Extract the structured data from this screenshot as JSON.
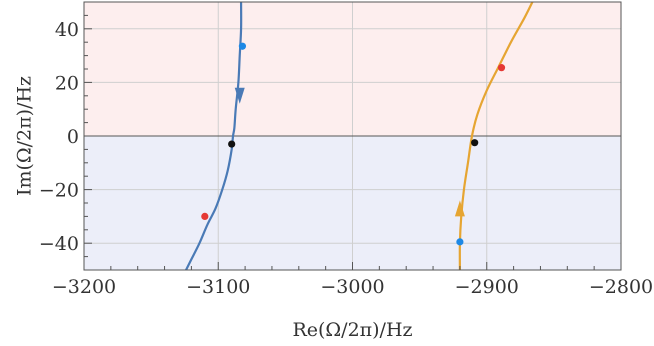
{
  "chart_data": {
    "type": "line",
    "xlabel": "Re(Ω/2π)/Hz",
    "ylabel": "Im(Ω/2π)/Hz",
    "xlim": [
      -3200,
      -2800
    ],
    "ylim": [
      -50,
      50
    ],
    "x_ticks": [
      -3200,
      -3100,
      -3000,
      -2900,
      -2800
    ],
    "y_ticks": [
      -40,
      -20,
      0,
      20,
      40
    ],
    "x_tick_labels": [
      "−3200",
      "−3100",
      "−3000",
      "−2900",
      "−2800"
    ],
    "y_tick_labels": [
      "−40",
      "−20",
      "0",
      "20",
      "40"
    ],
    "grid": true,
    "regions": [
      {
        "y_range": [
          0,
          50
        ],
        "color": "#fdeeee"
      },
      {
        "y_range": [
          -50,
          0
        ],
        "color": "#eceef9"
      }
    ],
    "zero_line": true,
    "series": [
      {
        "color": "#4a7ab6",
        "arrow": {
          "at": [
            -3084,
            15
          ],
          "direction": "down"
        },
        "points": [
          [
            -3083,
            50
          ],
          [
            -3083,
            40
          ],
          [
            -3084,
            30
          ],
          [
            -3085,
            20
          ],
          [
            -3087,
            10
          ],
          [
            -3088,
            3
          ],
          [
            -3089,
            0
          ],
          [
            -3090,
            -5
          ],
          [
            -3093,
            -13
          ],
          [
            -3097,
            -20
          ],
          [
            -3102,
            -27
          ],
          [
            -3108,
            -33
          ],
          [
            -3114,
            -40
          ],
          [
            -3120,
            -46
          ],
          [
            -3124,
            -50
          ]
        ],
        "markers": [
          {
            "x": -3082,
            "y": 33.5,
            "color": "#1e88e5"
          },
          {
            "x": -3090,
            "y": -3,
            "color": "#111111"
          },
          {
            "x": -3110,
            "y": -30,
            "color": "#e53935"
          }
        ]
      },
      {
        "color": "#e6a532",
        "arrow": {
          "at": [
            -2920,
            -27
          ],
          "direction": "up"
        },
        "points": [
          [
            -2920,
            -50
          ],
          [
            -2920,
            -40
          ],
          [
            -2919,
            -30
          ],
          [
            -2917,
            -20
          ],
          [
            -2914,
            -10
          ],
          [
            -2911,
            0
          ],
          [
            -2907,
            8
          ],
          [
            -2900,
            17
          ],
          [
            -2891,
            26
          ],
          [
            -2882,
            35
          ],
          [
            -2872,
            44
          ],
          [
            -2866,
            50
          ]
        ],
        "markers": [
          {
            "x": -2920,
            "y": -39.5,
            "color": "#1e88e5"
          },
          {
            "x": -2909,
            "y": -2.5,
            "color": "#111111"
          },
          {
            "x": -2889,
            "y": 25.5,
            "color": "#e53935"
          }
        ]
      }
    ]
  }
}
